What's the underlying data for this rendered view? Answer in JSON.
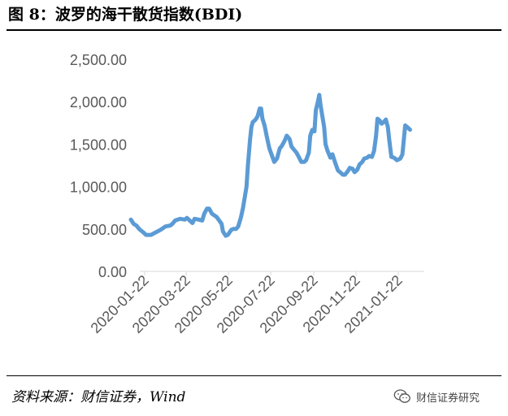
{
  "figure": {
    "title": "图 8：波罗的海干散货指数(BDI)",
    "source": "资料来源：财信证券，Wind"
  },
  "watermark": {
    "icon": "wechat-icon",
    "text": "财信证券研究"
  },
  "chart_data": {
    "type": "line",
    "title": "",
    "xlabel": "",
    "ylabel": "",
    "ylim": [
      0,
      2500
    ],
    "yticks": [
      "0.00",
      "500.00",
      "1,000.00",
      "1,500.00",
      "2,000.00",
      "2,500.00"
    ],
    "xticks": [
      "2020-01-22",
      "2020-03-22",
      "2020-05-22",
      "2020-07-22",
      "2020-09-22",
      "2020-11-22",
      "2021-01-22"
    ],
    "legend": "none",
    "grid": false,
    "line_color": "#5B9BD5",
    "series": [
      {
        "name": "",
        "points": [
          [
            "2020-01-02",
            610
          ],
          [
            "2020-01-06",
            560
          ],
          [
            "2020-01-10",
            540
          ],
          [
            "2020-01-14",
            500
          ],
          [
            "2020-01-20",
            460
          ],
          [
            "2020-01-24",
            430
          ],
          [
            "2020-01-31",
            430
          ],
          [
            "2020-02-07",
            460
          ],
          [
            "2020-02-14",
            490
          ],
          [
            "2020-02-21",
            530
          ],
          [
            "2020-02-28",
            540
          ],
          [
            "2020-03-02",
            560
          ],
          [
            "2020-03-06",
            600
          ],
          [
            "2020-03-13",
            620
          ],
          [
            "2020-03-20",
            610
          ],
          [
            "2020-03-23",
            630
          ],
          [
            "2020-03-27",
            600
          ],
          [
            "2020-03-31",
            570
          ],
          [
            "2020-04-03",
            620
          ],
          [
            "2020-04-09",
            610
          ],
          [
            "2020-04-14",
            600
          ],
          [
            "2020-04-17",
            680
          ],
          [
            "2020-04-21",
            740
          ],
          [
            "2020-04-24",
            740
          ],
          [
            "2020-04-28",
            680
          ],
          [
            "2020-05-05",
            640
          ],
          [
            "2020-05-12",
            560
          ],
          [
            "2020-05-14",
            470
          ],
          [
            "2020-05-18",
            420
          ],
          [
            "2020-05-21",
            430
          ],
          [
            "2020-05-26",
            490
          ],
          [
            "2020-05-29",
            500
          ],
          [
            "2020-06-02",
            500
          ],
          [
            "2020-06-05",
            530
          ],
          [
            "2020-06-09",
            640
          ],
          [
            "2020-06-12",
            750
          ],
          [
            "2020-06-15",
            900
          ],
          [
            "2020-06-17",
            1000
          ],
          [
            "2020-06-19",
            1250
          ],
          [
            "2020-06-22",
            1550
          ],
          [
            "2020-06-24",
            1700
          ],
          [
            "2020-06-26",
            1760
          ],
          [
            "2020-06-29",
            1780
          ],
          [
            "2020-07-01",
            1800
          ],
          [
            "2020-07-03",
            1830
          ],
          [
            "2020-07-06",
            1920
          ],
          [
            "2020-07-08",
            1920
          ],
          [
            "2020-07-10",
            1800
          ],
          [
            "2020-07-13",
            1720
          ],
          [
            "2020-07-16",
            1600
          ],
          [
            "2020-07-20",
            1450
          ],
          [
            "2020-07-23",
            1380
          ],
          [
            "2020-07-27",
            1290
          ],
          [
            "2020-07-31",
            1330
          ],
          [
            "2020-08-04",
            1450
          ],
          [
            "2020-08-07",
            1480
          ],
          [
            "2020-08-11",
            1540
          ],
          [
            "2020-08-14",
            1600
          ],
          [
            "2020-08-18",
            1560
          ],
          [
            "2020-08-21",
            1470
          ],
          [
            "2020-08-25",
            1430
          ],
          [
            "2020-08-28",
            1400
          ],
          [
            "2020-09-01",
            1340
          ],
          [
            "2020-09-04",
            1290
          ],
          [
            "2020-09-08",
            1290
          ],
          [
            "2020-09-11",
            1310
          ],
          [
            "2020-09-15",
            1400
          ],
          [
            "2020-09-17",
            1600
          ],
          [
            "2020-09-20",
            1670
          ],
          [
            "2020-09-23",
            1650
          ],
          [
            "2020-09-25",
            1900
          ],
          [
            "2020-09-28",
            2000
          ],
          [
            "2020-09-30",
            2080
          ],
          [
            "2020-10-02",
            1950
          ],
          [
            "2020-10-05",
            1800
          ],
          [
            "2020-10-07",
            1700
          ],
          [
            "2020-10-09",
            1500
          ],
          [
            "2020-10-12",
            1420
          ],
          [
            "2020-10-14",
            1380
          ],
          [
            "2020-10-16",
            1340
          ],
          [
            "2020-10-19",
            1380
          ],
          [
            "2020-10-21",
            1330
          ],
          [
            "2020-10-23",
            1280
          ],
          [
            "2020-10-27",
            1190
          ],
          [
            "2020-10-30",
            1170
          ],
          [
            "2020-11-03",
            1140
          ],
          [
            "2020-11-06",
            1140
          ],
          [
            "2020-11-10",
            1180
          ],
          [
            "2020-11-13",
            1220
          ],
          [
            "2020-11-17",
            1210
          ],
          [
            "2020-11-20",
            1170
          ],
          [
            "2020-11-24",
            1200
          ],
          [
            "2020-11-27",
            1260
          ],
          [
            "2020-12-01",
            1290
          ],
          [
            "2020-12-04",
            1330
          ],
          [
            "2020-12-08",
            1340
          ],
          [
            "2020-12-11",
            1360
          ],
          [
            "2020-12-15",
            1350
          ],
          [
            "2020-12-18",
            1420
          ],
          [
            "2020-12-21",
            1600
          ],
          [
            "2020-12-23",
            1800
          ],
          [
            "2020-12-26",
            1780
          ],
          [
            "2020-12-29",
            1740
          ],
          [
            "2021-01-01",
            1760
          ],
          [
            "2021-01-04",
            1790
          ],
          [
            "2021-01-07",
            1700
          ],
          [
            "2021-01-09",
            1550
          ],
          [
            "2021-01-12",
            1350
          ],
          [
            "2021-01-16",
            1340
          ],
          [
            "2021-01-20",
            1310
          ],
          [
            "2021-01-25",
            1330
          ],
          [
            "2021-01-28",
            1380
          ],
          [
            "2021-01-30",
            1550
          ],
          [
            "2021-02-01",
            1720
          ],
          [
            "2021-02-04",
            1700
          ],
          [
            "2021-02-08",
            1670
          ]
        ]
      }
    ]
  }
}
